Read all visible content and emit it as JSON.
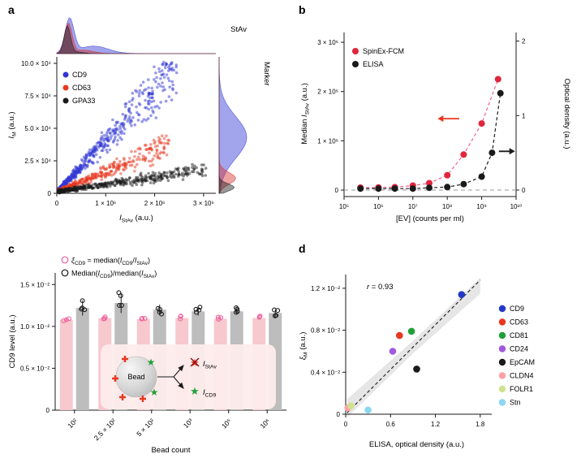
{
  "figure": {
    "panels": [
      {
        "letter": "a"
      },
      {
        "letter": "b"
      },
      {
        "letter": "c"
      },
      {
        "letter": "d"
      }
    ]
  },
  "chart_data": [
    {
      "panel": "a",
      "type": "scatter",
      "xlabel_parts": [
        {
          "t": "I",
          "s": "i"
        },
        {
          "t": "StAv",
          "s": "sub"
        },
        {
          "t": " (a.u.)"
        }
      ],
      "ylabel_parts": [
        {
          "t": "I",
          "s": "i"
        },
        {
          "t": "M",
          "s": "sub"
        },
        {
          "t": " (a.u.)"
        }
      ],
      "x_ticks": {
        "values": [
          0,
          1000000,
          2000000,
          3000000
        ],
        "labels": [
          "0",
          "1 × 10⁶",
          "2 × 10⁶",
          "3 × 10⁶"
        ]
      },
      "y_ticks": {
        "values": [
          0,
          25000,
          50000,
          75000,
          100000
        ],
        "labels": [
          "0",
          "2.5 × 10⁴",
          "5.0 × 10⁴",
          "7.5 × 10⁴",
          "10.0 × 10⁴"
        ]
      },
      "xlim": [
        0,
        3250000
      ],
      "ylim": [
        0,
        105000
      ],
      "annotations": {
        "top_density": "StAv",
        "right_density": "Marker"
      },
      "gen": {
        "x_min": 30000,
        "x_pow": 1.8
      },
      "series": [
        {
          "name": "CD9",
          "color": "#3137d4",
          "n": 520,
          "slope": 0.039,
          "x_max": 2450000,
          "noise": 0.3
        },
        {
          "name": "CD63",
          "color": "#e8381f",
          "n": 360,
          "slope": 0.0155,
          "x_max": 2300000,
          "noise": 0.36
        },
        {
          "name": "GPA33",
          "color": "#1a1a1a",
          "n": 430,
          "slope": 0.0056,
          "x_max": 3050000,
          "noise": 0.42
        }
      ],
      "marginals": {
        "top": [
          {
            "color": "#3137d4",
            "mean": 260000,
            "sd": 90000,
            "amp": 1.0,
            "bump_mean": 750000,
            "bump_sd": 300000,
            "bump_amp": 0.22
          },
          {
            "color": "#d4312f",
            "mean": 235000,
            "sd": 75000,
            "amp": 0.88,
            "bump_mean": 550000,
            "bump_sd": 200000,
            "bump_amp": 0.1
          },
          {
            "color": "#1a1a1a",
            "mean": 215000,
            "sd": 65000,
            "amp": 0.8,
            "bump_mean": 400000,
            "bump_sd": 150000,
            "bump_amp": 0.05
          }
        ],
        "right": [
          {
            "color": "#3137d4",
            "mean": 43000,
            "sd": 16000,
            "amp": 1.0
          },
          {
            "color": "#d4312f",
            "mean": 11500,
            "sd": 4500,
            "amp": 0.6
          },
          {
            "color": "#1a1a1a",
            "mean": 4500,
            "sd": 2800,
            "amp": 0.55
          }
        ]
      }
    },
    {
      "panel": "b",
      "type": "line",
      "xlabel_parts": [
        {
          "t": "[EV] (counts per ml)"
        }
      ],
      "ylabel_left_parts": [
        {
          "t": "Median "
        },
        {
          "t": "I",
          "s": "i"
        },
        {
          "t": "StAv",
          "s": "sub"
        },
        {
          "t": " (a.u.)"
        }
      ],
      "ylabel_right_parts": [
        {
          "t": "Optical density (a.u.)"
        }
      ],
      "x_ticks": {
        "values": [
          100000,
          1000000,
          10000000,
          100000000,
          1000000000,
          10000000000
        ],
        "labels": [
          "10⁵",
          "10⁶",
          "10⁷",
          "10⁸",
          "10⁹",
          "10¹⁰"
        ]
      },
      "y_left_ticks": {
        "values": [
          0,
          1000000,
          2000000,
          3000000
        ],
        "labels": [
          "0",
          "1 × 10⁶",
          "2 × 10⁶",
          "3 × 10⁶"
        ]
      },
      "y_right_ticks": {
        "values": [
          0,
          1,
          2
        ],
        "labels": [
          "0",
          "1",
          "2"
        ]
      },
      "xlim_log": [
        5,
        10
      ],
      "ylim_left": [
        0,
        3100000
      ],
      "ylim_right": [
        0,
        2.05
      ],
      "series": [
        {
          "name": "SpinEx-FCM",
          "axis": "left",
          "dot_color": "#e0263c",
          "line_color": "#f06292",
          "x": [
            300000,
            1000000,
            3000000,
            10000000,
            30000000,
            100000000,
            300000000,
            1000000000,
            3000000000
          ],
          "y": [
            50000,
            52000,
            60000,
            90000,
            140000,
            300000,
            720000,
            1350000,
            2250000
          ]
        },
        {
          "name": "ELISA",
          "axis": "right",
          "dot_color": "#1a1a1a",
          "line_color": "#1a1a1a",
          "x": [
            300000,
            1000000,
            3000000,
            10000000,
            30000000,
            100000000,
            300000000,
            1000000000,
            2000000000,
            3500000000
          ],
          "y": [
            0.02,
            0.02,
            0.02,
            0.02,
            0.03,
            0.04,
            0.08,
            0.18,
            0.5,
            1.3
          ]
        }
      ],
      "zero_line": true,
      "arrows": [
        {
          "axis": "left",
          "color": "#e8381f",
          "x_from_log": 8.35,
          "x_to_log": 7.72,
          "y": 1450000
        },
        {
          "axis": "right",
          "color": "#1a1a1a",
          "x_from_log": 9.5,
          "x_to_log": 9.97,
          "y": 0.52
        }
      ]
    },
    {
      "panel": "c",
      "type": "bar",
      "xlabel_parts": [
        {
          "t": "Bead count"
        }
      ],
      "ylabel_parts": [
        {
          "t": "CD9 level (a.u.)"
        }
      ],
      "categories": [
        "10²",
        "2.5 × 10²",
        "5 × 10²",
        "10³",
        "10⁵",
        "10⁶"
      ],
      "y_ticks": {
        "values": [
          0,
          0.005,
          0.01,
          0.015
        ],
        "labels": [
          "0",
          "0.5 × 10⁻²",
          "1.0 × 10⁻²",
          "1.5 × 10⁻²"
        ]
      },
      "ylim": [
        0,
        0.016
      ],
      "series": [
        {
          "legend_parts": [
            {
              "t": "ξ",
              "s": "i"
            },
            {
              "t": "CD9",
              "s": "sub"
            },
            {
              "t": " = median("
            },
            {
              "t": "I",
              "s": "i"
            },
            {
              "t": "CD9",
              "s": "sub"
            },
            {
              "t": "/"
            },
            {
              "t": "I",
              "s": "i"
            },
            {
              "t": "StAv",
              "s": "sub"
            },
            {
              "t": ")"
            }
          ],
          "bar_color": "#f7c8cd",
          "dot_color": "#f0609e",
          "values": [
            0.0108,
            0.011,
            0.0109,
            0.011,
            0.0109,
            0.011
          ],
          "err": [
            0.0002,
            0.0002,
            0.0002,
            0.0002,
            0.0002,
            0.0002
          ]
        },
        {
          "legend_parts": [
            {
              "t": "Median("
            },
            {
              "t": "I",
              "s": "i"
            },
            {
              "t": "CD9",
              "s": "sub"
            },
            {
              "t": ")/median("
            },
            {
              "t": "I",
              "s": "i"
            },
            {
              "t": "StAv",
              "s": "sub"
            },
            {
              "t": ")"
            }
          ],
          "bar_color": "#bdbdbd",
          "dot_color": "#1a1a1a",
          "values": [
            0.0122,
            0.0128,
            0.012,
            0.0118,
            0.0118,
            0.0116
          ],
          "err": [
            0.0009,
            0.0012,
            0.0006,
            0.0005,
            0.0004,
            0.0004
          ]
        }
      ],
      "inset": {
        "bead_label": "Bead",
        "star_glyph": "★",
        "out_top_parts": [
          {
            "t": "I",
            "s": "i"
          },
          {
            "t": "StAv",
            "s": "sub"
          }
        ],
        "out_bottom_parts": [
          {
            "t": "I",
            "s": "i"
          },
          {
            "t": "CD9",
            "s": "sub"
          }
        ],
        "star_color": "#21a038",
        "cross_color": "#e8381f",
        "blocked_star_color": "#e8381f"
      }
    },
    {
      "panel": "d",
      "type": "scatter",
      "xlabel_parts": [
        {
          "t": "ELISA, optical density (a.u.)"
        }
      ],
      "ylabel_parts": [
        {
          "t": "ξ",
          "s": "i"
        },
        {
          "t": "M",
          "s": "sub"
        },
        {
          "t": " (a.u.)"
        }
      ],
      "x_ticks": {
        "values": [
          0,
          0.6,
          1.2,
          1.8
        ],
        "labels": [
          "0",
          "0.6",
          "1.2",
          "1.8"
        ]
      },
      "y_ticks": {
        "values": [
          0,
          0.004,
          0.008,
          0.012
        ],
        "labels": [
          "0",
          "0.4 × 10⁻²",
          "0.8 × 10⁻²",
          "1.2 × 10⁻²"
        ]
      },
      "xlim": [
        0,
        1.9
      ],
      "ylim": [
        0,
        0.013
      ],
      "annotation_parts": [
        {
          "t": "r",
          "s": "i"
        },
        {
          "t": " = 0.93"
        }
      ],
      "trend": {
        "slope": 0.0071,
        "intercept": 0,
        "x_range": [
          0.02,
          1.8
        ],
        "band_x": [
          0.02,
          0.9,
          1.8
        ],
        "band_offsets": [
          0.0013,
          0.0006,
          0.0013
        ],
        "band_color": "#d9d9d9"
      },
      "points": [
        {
          "name": "CD9",
          "color": "#2438c8",
          "x": 1.55,
          "y": 0.0114
        },
        {
          "name": "CD63",
          "color": "#e8381f",
          "x": 0.72,
          "y": 0.0075
        },
        {
          "name": "CD81",
          "color": "#21a038",
          "x": 0.88,
          "y": 0.0079
        },
        {
          "name": "CD24",
          "color": "#a257dd",
          "x": 0.63,
          "y": 0.006
        },
        {
          "name": "EpCAM",
          "color": "#1a1a1a",
          "x": 0.95,
          "y": 0.0043
        },
        {
          "name": "CLDN4",
          "color": "#ffa0a6",
          "x": 0.03,
          "y": 0.0006
        },
        {
          "name": "FOLR1",
          "color": "#cfe18e",
          "x": 0.07,
          "y": 0.0008
        },
        {
          "name": "Stn",
          "color": "#8ad8f2",
          "x": 0.3,
          "y": 0.0004
        }
      ]
    }
  ]
}
